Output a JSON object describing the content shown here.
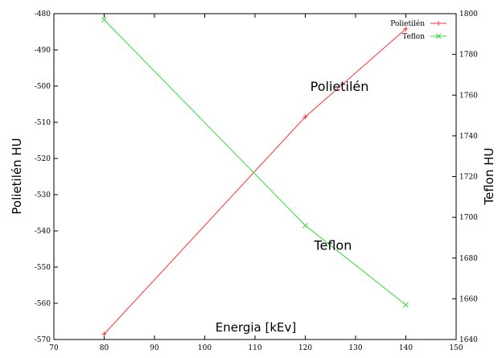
{
  "chart_data": {
    "type": "line",
    "x": [
      80,
      120,
      140
    ],
    "xlim": [
      70,
      150
    ],
    "xticks": [
      70,
      80,
      90,
      100,
      110,
      120,
      130,
      140,
      150
    ],
    "xlabel": "Energia [kEv]",
    "ylabel_left": "Polietilén HU",
    "ylabel_right": "Teflon HU",
    "ylim_left": [
      -570,
      -480
    ],
    "yticks_left": [
      -570,
      -560,
      -550,
      -540,
      -530,
      -520,
      -510,
      -500,
      -490,
      -480
    ],
    "ylim_right": [
      1640,
      1800
    ],
    "yticks_right": [
      1640,
      1660,
      1680,
      1700,
      1720,
      1740,
      1760,
      1780,
      1800
    ],
    "legend_position": "top-right",
    "series": [
      {
        "name": "Polietilén",
        "axis": "left",
        "color": "#ff3333",
        "marker": "plus",
        "values": [
          -568.5,
          -508.5,
          -484.2
        ]
      },
      {
        "name": "Teflon",
        "axis": "right",
        "color": "#33dd33",
        "marker": "cross",
        "values": [
          1797,
          1696,
          1657
        ]
      }
    ],
    "annotations": [
      {
        "text": "Polietilén",
        "x": 126.8,
        "y_right": 1762
      },
      {
        "text": "Teflon",
        "x": 125.5,
        "y_right": 1684
      }
    ]
  }
}
